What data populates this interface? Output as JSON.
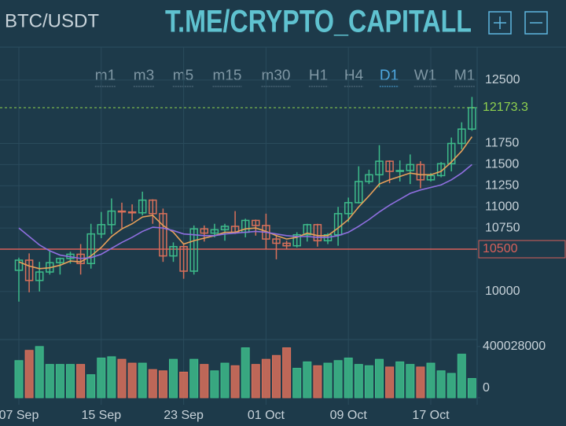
{
  "chart_data": {
    "type": "candlestick",
    "title": "BTC/USDT",
    "watermark": "T.ME/CRYPTO_CAPITALL",
    "timeframes": [
      "m1",
      "m3",
      "m5",
      "m15",
      "m30",
      "H1",
      "H4",
      "D1",
      "W1",
      "M1"
    ],
    "active_timeframe": "D1",
    "categories": [
      "07 Sep",
      null,
      null,
      null,
      null,
      null,
      null,
      null,
      "15 Sep",
      null,
      null,
      null,
      null,
      null,
      null,
      null,
      "23 Sep",
      null,
      null,
      null,
      null,
      null,
      null,
      null,
      "01 Oct",
      null,
      null,
      null,
      null,
      null,
      null,
      null,
      "09 Oct",
      null,
      null,
      null,
      null,
      null,
      null,
      null,
      "17 Oct",
      null,
      null,
      null,
      null
    ],
    "open": [
      10250,
      10370,
      10130,
      10230,
      10340,
      10390,
      10440,
      10330,
      10680,
      10790,
      10950,
      10940,
      10930,
      11080,
      10920,
      10420,
      10530,
      10240,
      10740,
      10690,
      10730,
      10770,
      10700,
      10840,
      10780,
      10620,
      10570,
      10540,
      10670,
      10790,
      10600,
      10670,
      10920,
      11050,
      11300,
      11380,
      11540,
      11420,
      11430,
      11500,
      11320,
      11370,
      11510,
      11750,
      11920
    ],
    "high": [
      10400,
      10450,
      10350,
      10480,
      10400,
      10470,
      10560,
      10800,
      10940,
      11100,
      11050,
      11030,
      11180,
      11090,
      10980,
      10580,
      10560,
      10780,
      10780,
      10800,
      10800,
      10950,
      10860,
      10850,
      10920,
      10660,
      10600,
      10700,
      10800,
      10800,
      10690,
      11000,
      11110,
      11480,
      11440,
      11730,
      11550,
      11550,
      11620,
      11540,
      11400,
      11530,
      11820,
      12000,
      12300
    ],
    "low": [
      9880,
      9990,
      10000,
      10200,
      10200,
      10330,
      10200,
      10270,
      10630,
      10680,
      10750,
      10830,
      10900,
      10800,
      10350,
      10350,
      10150,
      10200,
      10590,
      10640,
      10600,
      10680,
      10640,
      10660,
      10500,
      10380,
      10500,
      10520,
      10590,
      10530,
      10560,
      10540,
      10820,
      11040,
      11270,
      11230,
      11280,
      11300,
      11270,
      11220,
      11300,
      11350,
      11420,
      11680,
      11900
    ],
    "close": [
      10370,
      10130,
      10230,
      10340,
      10390,
      10440,
      10330,
      10680,
      10790,
      10950,
      10940,
      10930,
      11080,
      10920,
      10420,
      10530,
      10240,
      10740,
      10690,
      10730,
      10770,
      10700,
      10840,
      10780,
      10620,
      10570,
      10540,
      10670,
      10790,
      10600,
      10670,
      10920,
      11050,
      11300,
      11380,
      11540,
      11420,
      11430,
      11500,
      11320,
      11370,
      11510,
      11750,
      11920,
      12173.3
    ],
    "volume": [
      290000000,
      370000000,
      400000000,
      260000000,
      260000000,
      260000000,
      260000000,
      180000000,
      310000000,
      320000000,
      300000000,
      270000000,
      270000000,
      220000000,
      210000000,
      300000000,
      200000000,
      300000000,
      260000000,
      210000000,
      270000000,
      250000000,
      390000000,
      260000000,
      300000000,
      330000000,
      390000000,
      230000000,
      280000000,
      250000000,
      270000000,
      290000000,
      310000000,
      260000000,
      250000000,
      300000000,
      240000000,
      280000000,
      260000000,
      240000000,
      270000000,
      210000000,
      190000000,
      340000000,
      150000000
    ],
    "series": [
      {
        "color": "#e8a15a",
        "values": [
          10350,
          10300,
          10270,
          10280,
          10310,
          10360,
          10350,
          10420,
          10520,
          10650,
          10740,
          10800,
          10880,
          10900,
          10780,
          10700,
          10560,
          10600,
          10630,
          10660,
          10700,
          10700,
          10740,
          10750,
          10710,
          10660,
          10620,
          10640,
          10690,
          10660,
          10660,
          10750,
          10850,
          11000,
          11130,
          11270,
          11320,
          11360,
          11400,
          11380,
          11380,
          11420,
          11530,
          11660,
          11830
        ]
      },
      {
        "color": "#8f6fe0",
        "values": [
          10750,
          10650,
          10550,
          10480,
          10430,
          10410,
          10390,
          10400,
          10440,
          10510,
          10580,
          10640,
          10710,
          10760,
          10750,
          10720,
          10680,
          10670,
          10660,
          10660,
          10680,
          10690,
          10700,
          10710,
          10700,
          10680,
          10660,
          10650,
          10650,
          10640,
          10640,
          10660,
          10700,
          10770,
          10850,
          10940,
          11020,
          11090,
          11160,
          11200,
          11230,
          11260,
          11320,
          11400,
          11500
        ]
      }
    ],
    "up_color": "#3dbb8a",
    "down_color": "#d9705a",
    "last_price": 12173.3,
    "last_price_color": "#8fd14f",
    "marker_line": 10500,
    "marker_color": "#d9605a",
    "ylim": [
      9450,
      12870
    ],
    "yticks": [
      10000,
      10750,
      11000,
      11250,
      11500,
      11750,
      12500
    ],
    "volume_ylim": [
      0,
      430000000
    ],
    "volume_yticks": [
      0,
      400028000
    ],
    "grid": true
  }
}
